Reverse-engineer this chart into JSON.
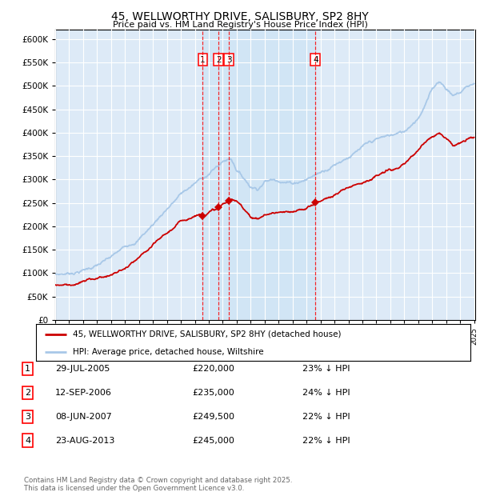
{
  "title": "45, WELLWORTHY DRIVE, SALISBURY, SP2 8HY",
  "subtitle": "Price paid vs. HM Land Registry's House Price Index (HPI)",
  "hpi_color": "#a8c8e8",
  "price_color": "#cc0000",
  "background_color": "#ffffff",
  "plot_bg_color": "#ddeaf7",
  "grid_color": "#ffffff",
  "ylim": [
    0,
    620000
  ],
  "yticks": [
    0,
    50000,
    100000,
    150000,
    200000,
    250000,
    300000,
    350000,
    400000,
    450000,
    500000,
    550000,
    600000
  ],
  "x_start_year": 1995,
  "x_end_year": 2025,
  "legend_entries": [
    "45, WELLWORTHY DRIVE, SALISBURY, SP2 8HY (detached house)",
    "HPI: Average price, detached house, Wiltshire"
  ],
  "transactions": [
    {
      "num": 1,
      "date": "29-JUL-2005",
      "price": 220000,
      "pct": "23%",
      "year": 2005.57
    },
    {
      "num": 2,
      "date": "12-SEP-2006",
      "price": 235000,
      "pct": "24%",
      "year": 2006.7
    },
    {
      "num": 3,
      "date": "08-JUN-2007",
      "price": 249500,
      "pct": "22%",
      "year": 2007.44
    },
    {
      "num": 4,
      "date": "23-AUG-2013",
      "price": 245000,
      "pct": "22%",
      "year": 2013.64
    }
  ],
  "footer_text": "Contains HM Land Registry data © Crown copyright and database right 2025.\nThis data is licensed under the Open Government Licence v3.0.",
  "hpi_keypoints": [
    [
      1995.0,
      98000
    ],
    [
      1996.0,
      100000
    ],
    [
      1997.0,
      108000
    ],
    [
      1998.0,
      118000
    ],
    [
      1999.0,
      130000
    ],
    [
      2000.0,
      148000
    ],
    [
      2001.0,
      170000
    ],
    [
      2002.0,
      200000
    ],
    [
      2003.0,
      235000
    ],
    [
      2004.0,
      265000
    ],
    [
      2005.0,
      285000
    ],
    [
      2006.0,
      305000
    ],
    [
      2007.0,
      330000
    ],
    [
      2007.6,
      338000
    ],
    [
      2008.0,
      315000
    ],
    [
      2009.0,
      280000
    ],
    [
      2009.5,
      278000
    ],
    [
      2010.0,
      295000
    ],
    [
      2011.0,
      300000
    ],
    [
      2012.0,
      295000
    ],
    [
      2013.0,
      305000
    ],
    [
      2014.0,
      320000
    ],
    [
      2015.0,
      340000
    ],
    [
      2016.0,
      360000
    ],
    [
      2017.0,
      375000
    ],
    [
      2018.0,
      385000
    ],
    [
      2019.0,
      390000
    ],
    [
      2020.0,
      395000
    ],
    [
      2021.0,
      430000
    ],
    [
      2022.0,
      490000
    ],
    [
      2022.5,
      510000
    ],
    [
      2023.0,
      495000
    ],
    [
      2023.5,
      480000
    ],
    [
      2024.0,
      485000
    ],
    [
      2024.5,
      500000
    ],
    [
      2025.0,
      505000
    ]
  ],
  "price_keypoints": [
    [
      1995.0,
      75000
    ],
    [
      1996.0,
      78000
    ],
    [
      1997.0,
      84000
    ],
    [
      1998.0,
      92000
    ],
    [
      1999.0,
      100000
    ],
    [
      2000.0,
      112000
    ],
    [
      2001.0,
      130000
    ],
    [
      2002.0,
      152000
    ],
    [
      2003.0,
      175000
    ],
    [
      2004.0,
      198000
    ],
    [
      2005.0,
      215000
    ],
    [
      2005.57,
      220000
    ],
    [
      2006.0,
      228000
    ],
    [
      2006.7,
      235000
    ],
    [
      2007.0,
      242000
    ],
    [
      2007.44,
      249500
    ],
    [
      2007.6,
      252000
    ],
    [
      2008.0,
      245000
    ],
    [
      2008.5,
      232000
    ],
    [
      2009.0,
      218000
    ],
    [
      2009.5,
      212000
    ],
    [
      2010.0,
      222000
    ],
    [
      2011.0,
      228000
    ],
    [
      2012.0,
      222000
    ],
    [
      2013.0,
      230000
    ],
    [
      2013.64,
      245000
    ],
    [
      2014.0,
      248000
    ],
    [
      2015.0,
      262000
    ],
    [
      2016.0,
      278000
    ],
    [
      2017.0,
      295000
    ],
    [
      2018.0,
      308000
    ],
    [
      2019.0,
      318000
    ],
    [
      2020.0,
      325000
    ],
    [
      2021.0,
      355000
    ],
    [
      2022.0,
      388000
    ],
    [
      2022.5,
      398000
    ],
    [
      2023.0,
      388000
    ],
    [
      2023.5,
      375000
    ],
    [
      2024.0,
      378000
    ],
    [
      2024.5,
      385000
    ],
    [
      2025.0,
      390000
    ]
  ]
}
